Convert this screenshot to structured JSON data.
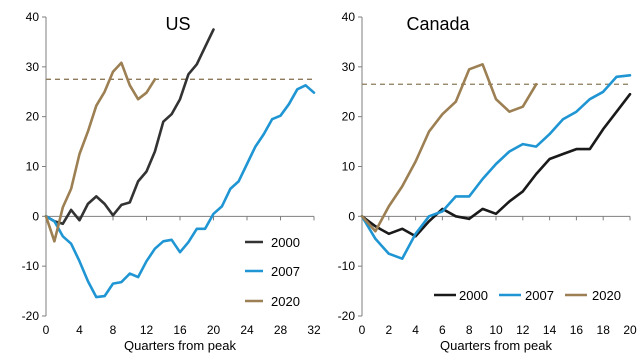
{
  "chart_data": [
    {
      "type": "line",
      "title": "US",
      "xlabel": "Quarters from peak",
      "ylabel": "",
      "xlim": [
        0,
        32
      ],
      "ylim": [
        -20,
        40
      ],
      "xticks": [
        0,
        4,
        8,
        12,
        16,
        20,
        24,
        28,
        32
      ],
      "yticks": [
        -20,
        -10,
        0,
        10,
        20,
        30,
        40
      ],
      "legend_position": "bottom-right",
      "reference_line": {
        "y": 27.5,
        "style": "dashed",
        "color": "#8c7a5a"
      },
      "series": [
        {
          "name": "2000",
          "color": "#333333",
          "x": [
            0,
            1,
            2,
            3,
            4,
            5,
            6,
            7,
            8,
            9,
            10,
            11,
            12,
            13,
            14,
            15,
            16,
            17,
            18,
            19,
            20
          ],
          "y": [
            0,
            -1,
            -1.5,
            1.3,
            -0.8,
            2.5,
            4,
            2.5,
            0.2,
            2.3,
            2.8,
            7,
            9,
            13,
            19,
            20.5,
            23.5,
            28.5,
            30.5,
            34,
            37.5
          ]
        },
        {
          "name": "2007",
          "color": "#1f96d3",
          "x": [
            0,
            1,
            2,
            3,
            4,
            5,
            6,
            7,
            8,
            9,
            10,
            11,
            12,
            13,
            14,
            15,
            16,
            17,
            18,
            19,
            20,
            21,
            22,
            23,
            24,
            25,
            26,
            27,
            28,
            29,
            30,
            31,
            32
          ],
          "y": [
            0,
            -1,
            -4,
            -5.5,
            -9,
            -13,
            -16.2,
            -16,
            -13.5,
            -13.2,
            -11.5,
            -12.2,
            -9,
            -6.5,
            -5,
            -4.7,
            -7.2,
            -5.2,
            -2.5,
            -2.5,
            0.5,
            2,
            5.5,
            7,
            10.5,
            14,
            16.5,
            19.5,
            20.2,
            22.5,
            25.5,
            26.3,
            24.8
          ]
        },
        {
          "name": "2020",
          "color": "#9c7f52",
          "x": [
            0,
            1,
            2,
            3,
            4,
            5,
            6,
            7,
            8,
            9,
            10,
            11,
            12,
            13
          ],
          "y": [
            0,
            -5,
            1.8,
            5.5,
            12.5,
            17,
            22.2,
            25,
            29,
            30.8,
            26.3,
            23.5,
            24.8,
            27.5
          ]
        }
      ]
    },
    {
      "type": "line",
      "title": "Canada",
      "xlabel": "Quarters from peak",
      "ylabel": "",
      "xlim": [
        0,
        20
      ],
      "ylim": [
        -20,
        40
      ],
      "xticks": [
        0,
        2,
        4,
        6,
        8,
        10,
        12,
        14,
        16,
        18,
        20
      ],
      "yticks": [
        -20,
        -10,
        0,
        10,
        20,
        30,
        40
      ],
      "legend_position": "bottom",
      "reference_line": {
        "y": 26.5,
        "style": "dashed",
        "color": "#8c7a5a"
      },
      "series": [
        {
          "name": "2000",
          "color": "#1a1a1a",
          "x": [
            0,
            1,
            2,
            3,
            4,
            5,
            6,
            7,
            8,
            9,
            10,
            11,
            12,
            13,
            14,
            15,
            16,
            17,
            18,
            19,
            20
          ],
          "y": [
            0,
            -2,
            -3.5,
            -2.5,
            -4,
            -1,
            1.5,
            0,
            -0.5,
            1.5,
            0.5,
            3,
            5,
            8.5,
            11.5,
            12.5,
            13.5,
            13.5,
            17.5,
            21,
            24.5
          ]
        },
        {
          "name": "2007",
          "color": "#1f96d3",
          "x": [
            0,
            1,
            2,
            3,
            4,
            5,
            6,
            7,
            8,
            9,
            10,
            11,
            12,
            13,
            14,
            15,
            16,
            17,
            18,
            19,
            20
          ],
          "y": [
            0,
            -4.5,
            -7.5,
            -8.5,
            -3.5,
            0,
            1,
            4,
            4,
            7.5,
            10.5,
            13,
            14.5,
            14,
            16.5,
            19.5,
            21,
            23.5,
            25,
            28,
            28.3
          ]
        },
        {
          "name": "2020",
          "color": "#9c7f52",
          "x": [
            0,
            1,
            2,
            3,
            4,
            5,
            6,
            7,
            8,
            9,
            10,
            11,
            12,
            13
          ],
          "y": [
            0,
            -3,
            2,
            6,
            11,
            17,
            20.5,
            23,
            29.5,
            30.5,
            23.5,
            21,
            22,
            26.5
          ]
        }
      ]
    }
  ]
}
